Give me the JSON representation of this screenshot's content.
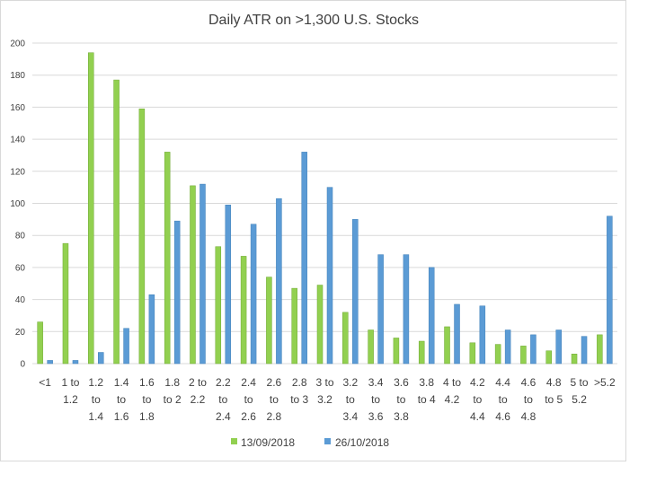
{
  "chart_data": {
    "type": "bar",
    "title": "Daily ATR on >1,300 U.S. Stocks",
    "xlabel": "",
    "ylabel": "",
    "ylim": [
      0,
      200
    ],
    "yticks": [
      0,
      20,
      40,
      60,
      80,
      100,
      120,
      140,
      160,
      180,
      200
    ],
    "grid": true,
    "legend_position": "bottom",
    "categories": [
      "<1",
      "1 to 1.2",
      "1.2 to 1.4",
      "1.4 to 1.6",
      "1.6 to 1.8",
      "1.8 to 2",
      "2 to 2.2",
      "2.2 to 2.4",
      "2.4 to 2.6",
      "2.6 to 2.8",
      "2.8 to 3",
      "3 to 3.2",
      "3.2 to 3.4",
      "3.4 to 3.6",
      "3.6 to 3.8",
      "3.8 to 4",
      "4 to 4.2",
      "4.2 to 4.4",
      "4.4 to 4.6",
      "4.6 to 4.8",
      "4.8 to 5",
      "5 to 5.2",
      ">5.2"
    ],
    "category_lines": [
      [
        "<1"
      ],
      [
        "1 to",
        "1.2"
      ],
      [
        "1.2",
        "to",
        "1.4"
      ],
      [
        "1.4",
        "to",
        "1.6"
      ],
      [
        "1.6",
        "to",
        "1.8"
      ],
      [
        "1.8",
        "to 2"
      ],
      [
        "2 to",
        "2.2"
      ],
      [
        "2.2",
        "to",
        "2.4"
      ],
      [
        "2.4",
        "to",
        "2.6"
      ],
      [
        "2.6",
        "to",
        "2.8"
      ],
      [
        "2.8",
        "to 3"
      ],
      [
        "3 to",
        "3.2"
      ],
      [
        "3.2",
        "to",
        "3.4"
      ],
      [
        "3.4",
        "to",
        "3.6"
      ],
      [
        "3.6",
        "to",
        "3.8"
      ],
      [
        "3.8",
        "to 4"
      ],
      [
        "4 to",
        "4.2"
      ],
      [
        "4.2",
        "to",
        "4.4"
      ],
      [
        "4.4",
        "to",
        "4.6"
      ],
      [
        "4.6",
        "to",
        "4.8"
      ],
      [
        "4.8",
        "to 5"
      ],
      [
        "5 to",
        "5.2"
      ],
      [
        ">5.2"
      ]
    ],
    "series": [
      {
        "name": "13/09/2018",
        "color": "#92d050",
        "values": [
          26,
          75,
          194,
          177,
          159,
          132,
          111,
          73,
          67,
          54,
          47,
          49,
          32,
          21,
          16,
          14,
          23,
          13,
          12,
          11,
          8,
          6,
          18
        ]
      },
      {
        "name": "26/10/2018",
        "color": "#5b9bd5",
        "values": [
          2,
          2,
          7,
          22,
          43,
          89,
          112,
          99,
          87,
          103,
          132,
          110,
          90,
          68,
          68,
          60,
          37,
          36,
          21,
          18,
          21,
          17,
          92
        ]
      }
    ]
  }
}
